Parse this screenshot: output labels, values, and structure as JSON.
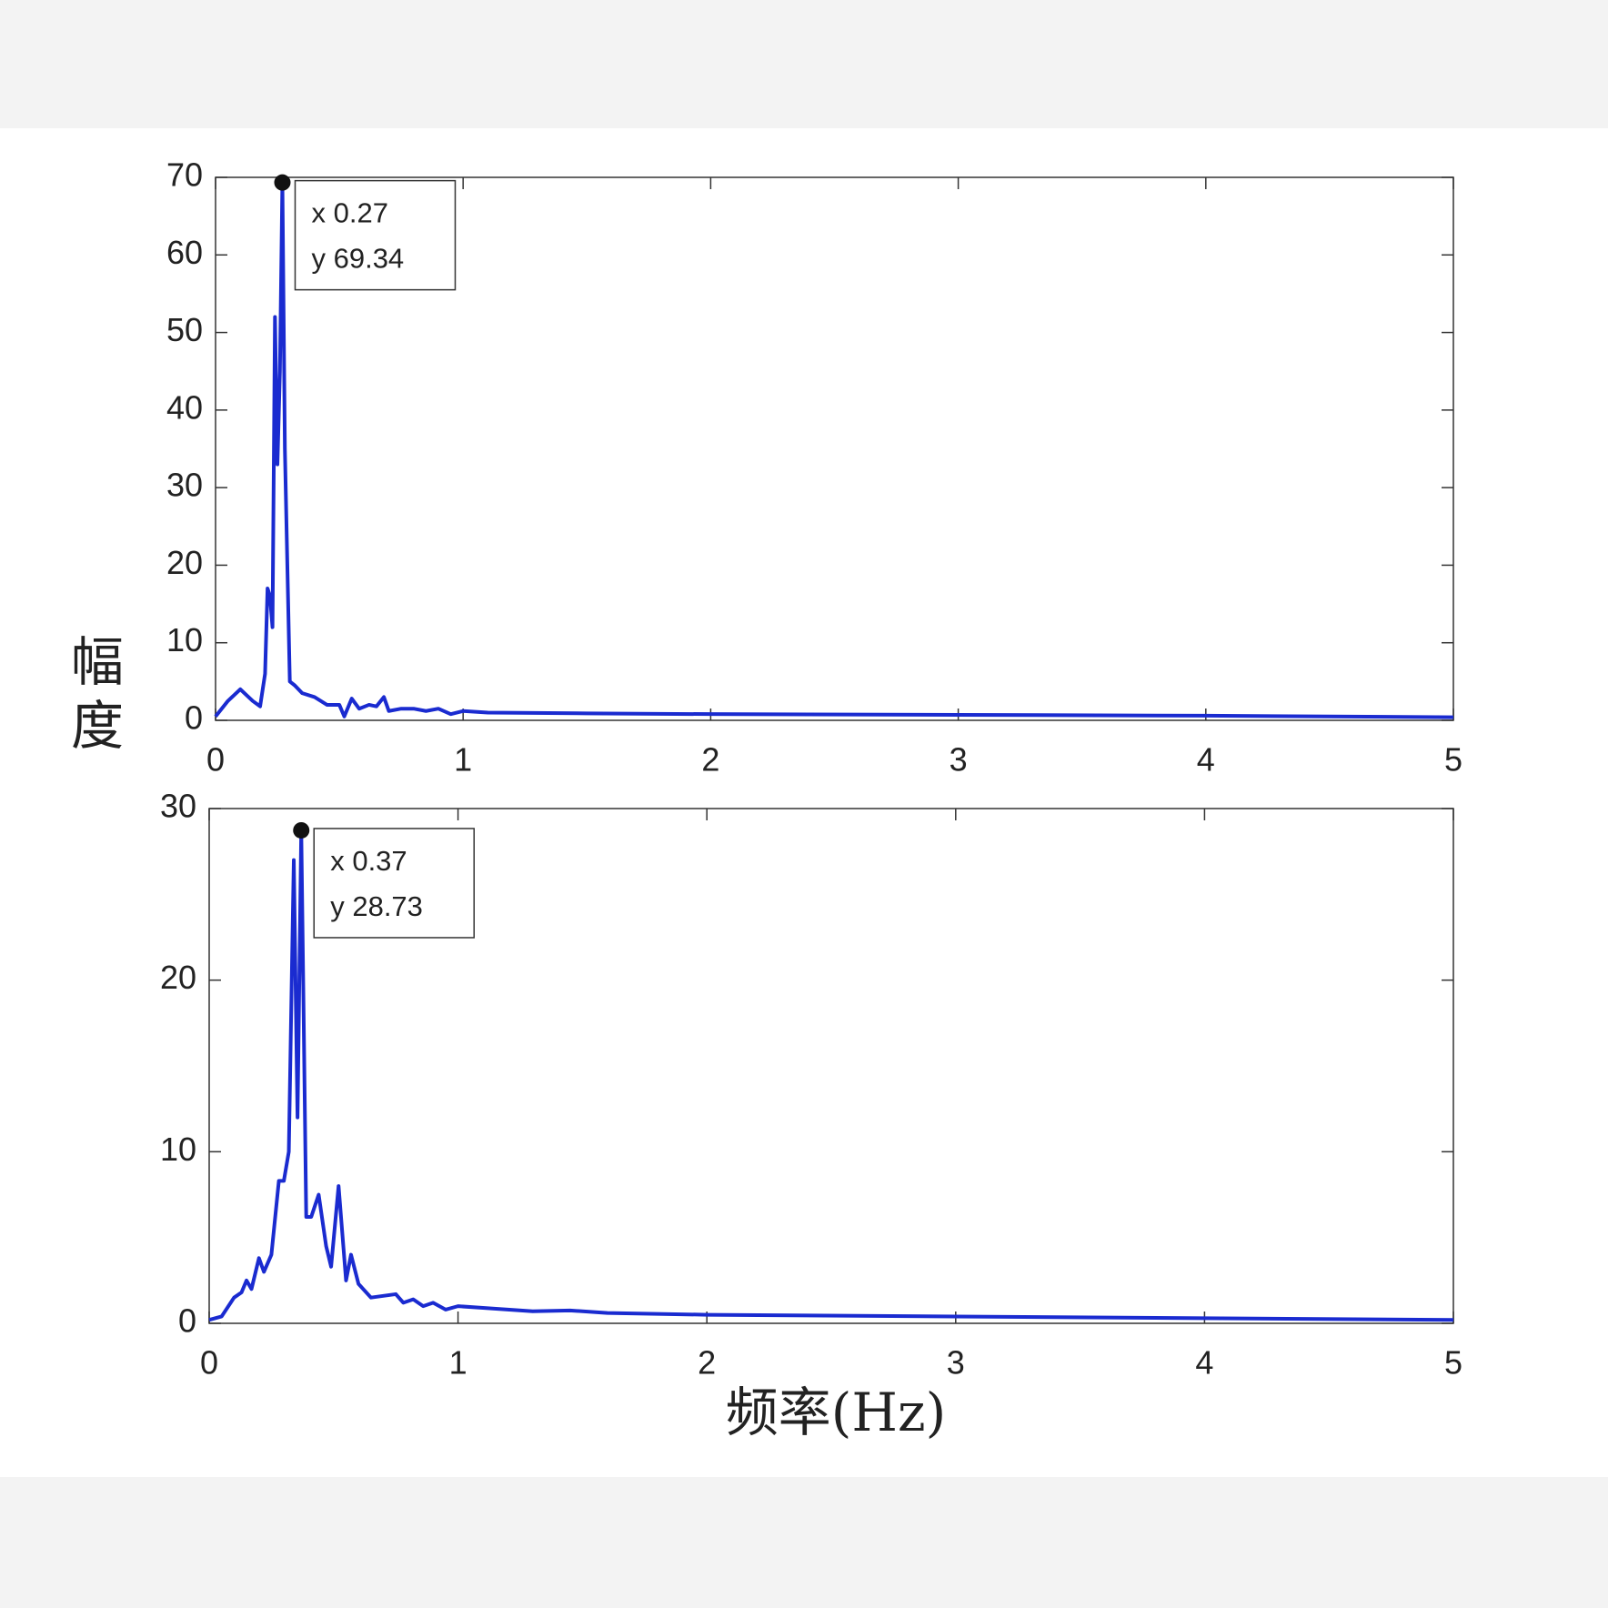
{
  "chart_data": [
    {
      "type": "line",
      "ylabel": "幅度",
      "x": [
        0,
        0.05,
        0.1,
        0.15,
        0.18,
        0.2,
        0.21,
        0.22,
        0.23,
        0.24,
        0.25,
        0.26,
        0.27,
        0.28,
        0.3,
        0.32,
        0.35,
        0.4,
        0.45,
        0.5,
        0.52,
        0.55,
        0.58,
        0.62,
        0.65,
        0.68,
        0.7,
        0.75,
        0.8,
        0.85,
        0.9,
        0.95,
        1.0,
        1.1,
        1.5,
        2,
        3,
        4,
        5
      ],
      "values": [
        0.5,
        2.5,
        4,
        2.5,
        1.8,
        6,
        17,
        16,
        12,
        52,
        33,
        45,
        69.34,
        35,
        5,
        4.5,
        3.5,
        3,
        2,
        2,
        0.5,
        2.8,
        1.5,
        2,
        1.8,
        3,
        1.2,
        1.5,
        1.5,
        1.2,
        1.5,
        0.8,
        1.2,
        1,
        0.9,
        0.8,
        0.7,
        0.6,
        0.4
      ],
      "color": "#1a2bd0",
      "xlim": [
        0,
        5
      ],
      "xticks": [
        0,
        1,
        2,
        3,
        4,
        5
      ],
      "ylim": [
        0,
        70
      ],
      "yticks": [
        0,
        10,
        20,
        30,
        40,
        50,
        60,
        70
      ],
      "datatip": {
        "x": 0.27,
        "y": 69.34,
        "x_text": "x 0.27",
        "y_text": "y 69.34"
      }
    },
    {
      "type": "line",
      "xlabel": "频率(Hz)",
      "x": [
        0,
        0.05,
        0.1,
        0.13,
        0.15,
        0.17,
        0.2,
        0.22,
        0.25,
        0.28,
        0.3,
        0.32,
        0.34,
        0.355,
        0.37,
        0.39,
        0.41,
        0.44,
        0.47,
        0.49,
        0.52,
        0.55,
        0.57,
        0.6,
        0.65,
        0.7,
        0.75,
        0.78,
        0.82,
        0.86,
        0.9,
        0.95,
        1.0,
        1.1,
        1.2,
        1.3,
        1.45,
        1.6,
        2,
        3,
        4,
        5
      ],
      "values": [
        0.2,
        0.4,
        1.5,
        1.8,
        2.5,
        2,
        3.8,
        3,
        4,
        8.3,
        8.3,
        10,
        27,
        12,
        28.73,
        6.2,
        6.2,
        7.5,
        4.5,
        3.3,
        8,
        2.5,
        4,
        2.3,
        1.5,
        1.6,
        1.7,
        1.2,
        1.4,
        1,
        1.2,
        0.8,
        1,
        0.9,
        0.8,
        0.7,
        0.75,
        0.6,
        0.5,
        0.4,
        0.3,
        0.2
      ],
      "color": "#1a2bd0",
      "xlim": [
        0,
        5
      ],
      "xticks": [
        0,
        1,
        2,
        3,
        4,
        5
      ],
      "ylim": [
        0,
        30
      ],
      "yticks": [
        0,
        10,
        20,
        30
      ],
      "datatip": {
        "x": 0.37,
        "y": 28.73,
        "x_text": "x 0.37",
        "y_text": "y 28.73"
      }
    }
  ]
}
